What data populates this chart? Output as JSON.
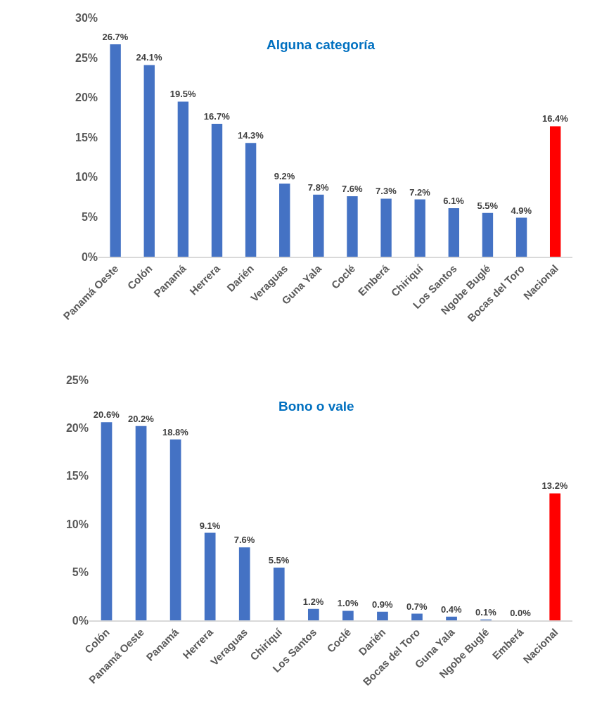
{
  "chart_data": [
    {
      "type": "bar",
      "title": "Alguna categoría",
      "categories": [
        "Panamá Oeste",
        "Colón",
        "Panamá",
        "Herrera",
        "Darién",
        "Veraguas",
        "Guna Yala",
        "Coclé",
        "Emberá",
        "Chiriquí",
        "Los Santos",
        "Ngobe Buglé",
        "Bocas del Toro",
        "Nacional"
      ],
      "values": [
        26.7,
        24.1,
        19.5,
        16.7,
        14.3,
        9.2,
        7.8,
        7.6,
        7.3,
        7.2,
        6.1,
        5.5,
        4.9,
        16.4
      ],
      "colors": [
        "#4472c4",
        "#4472c4",
        "#4472c4",
        "#4472c4",
        "#4472c4",
        "#4472c4",
        "#4472c4",
        "#4472c4",
        "#4472c4",
        "#4472c4",
        "#4472c4",
        "#4472c4",
        "#4472c4",
        "#ff0000"
      ],
      "value_labels": [
        "26.7%",
        "24.1%",
        "19.5%",
        "16.7%",
        "14.3%",
        "9.2%",
        "7.8%",
        "7.6%",
        "7.3%",
        "7.2%",
        "6.1%",
        "5.5%",
        "4.9%",
        "16.4%"
      ],
      "ylim": [
        0,
        30
      ],
      "yticks": [
        {
          "value": 0,
          "label": "0%"
        },
        {
          "value": 5,
          "label": "5%"
        },
        {
          "value": 10,
          "label": "10%"
        },
        {
          "value": 15,
          "label": "15%"
        },
        {
          "value": 20,
          "label": "20%"
        },
        {
          "value": 25,
          "label": "25%"
        },
        {
          "value": 30,
          "label": "30%"
        }
      ]
    },
    {
      "type": "bar",
      "title": "Bono o vale",
      "categories": [
        "Colón",
        "Panamá Oeste",
        "Panamá",
        "Herrera",
        "Veraguas",
        "Chiriquí",
        "Los Santos",
        "Coclé",
        "Darién",
        "Bocas del Toro",
        "Guna Yala",
        "Ngobe Buglé",
        "Emberá",
        "Nacional"
      ],
      "values": [
        20.6,
        20.2,
        18.8,
        9.1,
        7.6,
        5.5,
        1.2,
        1.0,
        0.9,
        0.7,
        0.4,
        0.1,
        0.0,
        13.2
      ],
      "colors": [
        "#4472c4",
        "#4472c4",
        "#4472c4",
        "#4472c4",
        "#4472c4",
        "#4472c4",
        "#4472c4",
        "#4472c4",
        "#4472c4",
        "#4472c4",
        "#4472c4",
        "#4472c4",
        "#4472c4",
        "#ff0000"
      ],
      "value_labels": [
        "20.6%",
        "20.2%",
        "18.8%",
        "9.1%",
        "7.6%",
        "5.5%",
        "1.2%",
        "1.0%",
        "0.9%",
        "0.7%",
        "0.4%",
        "0.1%",
        "0.0%",
        "13.2%"
      ],
      "ylim": [
        0,
        25
      ],
      "yticks": [
        {
          "value": 0,
          "label": "0%"
        },
        {
          "value": 5,
          "label": "5%"
        },
        {
          "value": 10,
          "label": "10%"
        },
        {
          "value": 15,
          "label": "15%"
        },
        {
          "value": 20,
          "label": "20%"
        },
        {
          "value": 25,
          "label": "25%"
        }
      ]
    }
  ]
}
